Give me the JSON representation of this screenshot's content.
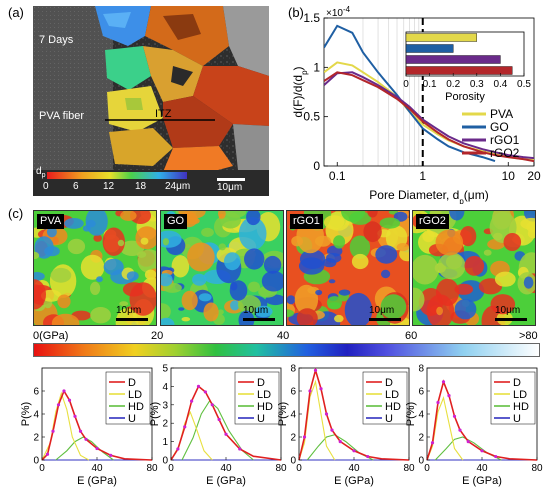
{
  "labels": {
    "a": "(a)",
    "b": "(b)",
    "c": "(c)"
  },
  "panel_a": {
    "days": "7 Days",
    "fiber": "PVA fiber",
    "itz": "ITZ",
    "cbar_symbol": "d",
    "cbar_sub": "p",
    "cbar_ticks": [
      "0",
      "6",
      "12",
      "18",
      "24μm"
    ],
    "scale": "10μm"
  },
  "panel_c": {
    "maps": [
      {
        "tag": "PVA",
        "scale": "10μm"
      },
      {
        "tag": "GO",
        "scale": "10μm"
      },
      {
        "tag": "rGO1",
        "scale": "10μm"
      },
      {
        "tag": "rGO2",
        "scale": "10μm"
      }
    ],
    "colorbar_ticks": [
      "0(GPa)",
      "20",
      "40",
      "60",
      ">80"
    ]
  },
  "colors": {
    "PVA": "#e3d84a",
    "GO": "#1f5fa3",
    "rGO1": "#6a2a8a",
    "rGO2": "#b3262a",
    "D": "#e02020",
    "LD": "#e8e040",
    "HD": "#60c040",
    "U": "#3030c0",
    "fit": "#d020d0"
  },
  "chart_data": [
    {
      "type": "line",
      "panel": "b",
      "ylabel": "d(F)/d(d_p)",
      "xlabel": "Pore Diameter, d_p(μm)",
      "exponent": "10",
      "exponent_power": "-4",
      "xscale": "log",
      "xlim": [
        0.07,
        20
      ],
      "ylim": [
        0,
        1.5
      ],
      "xticks": [
        "0.1",
        "1",
        "10",
        "20"
      ],
      "xtick_values": [
        0.1,
        1,
        10,
        20
      ],
      "yticks": [
        "0",
        "0.5",
        "1",
        "1.5"
      ],
      "ytick_values": [
        0,
        0.5,
        1.0,
        1.5
      ],
      "marker_line_x": 1,
      "series": [
        {
          "name": "PVA",
          "x": [
            0.07,
            0.1,
            0.15,
            0.2,
            0.3,
            0.5,
            0.7,
            1,
            1.5,
            2,
            3,
            5,
            7,
            10,
            15,
            20
          ],
          "y": [
            0.95,
            1.05,
            1.02,
            0.95,
            0.85,
            0.7,
            0.55,
            0.42,
            0.32,
            0.26,
            0.2,
            0.15,
            0.12,
            0.09,
            0.07,
            0.06
          ]
        },
        {
          "name": "GO",
          "x": [
            0.07,
            0.1,
            0.15,
            0.2,
            0.3,
            0.5,
            0.7,
            1,
            1.5,
            2,
            3,
            5,
            7
          ],
          "y": [
            1.2,
            1.42,
            1.35,
            1.15,
            0.95,
            0.72,
            0.55,
            0.38,
            0.27,
            0.2,
            0.14,
            0.09,
            0.05
          ]
        },
        {
          "name": "rGO1",
          "x": [
            0.07,
            0.1,
            0.15,
            0.2,
            0.3,
            0.5,
            0.7,
            1,
            1.5,
            2,
            3,
            5,
            7,
            10,
            15,
            20
          ],
          "y": [
            0.82,
            0.94,
            0.95,
            0.9,
            0.82,
            0.7,
            0.6,
            0.47,
            0.37,
            0.3,
            0.23,
            0.17,
            0.14,
            0.11,
            0.09,
            0.08
          ]
        },
        {
          "name": "rGO2",
          "x": [
            0.07,
            0.1,
            0.15,
            0.2,
            0.3,
            0.5,
            0.7,
            1,
            1.5,
            2,
            3,
            5,
            7,
            10,
            15,
            20
          ],
          "y": [
            0.86,
            0.95,
            0.92,
            0.87,
            0.8,
            0.68,
            0.58,
            0.45,
            0.34,
            0.27,
            0.2,
            0.14,
            0.11,
            0.09,
            0.07,
            0.05
          ]
        }
      ],
      "legend": [
        "PVA",
        "GO",
        "rGO1",
        "rGO2"
      ],
      "inset": {
        "type": "bar",
        "orientation": "horizontal",
        "xlabel": "Porosity",
        "xticks": [
          "0",
          "0.1",
          "0.2",
          "0.3",
          "0.4",
          "0.5"
        ],
        "xtick_values": [
          0,
          0.1,
          0.2,
          0.3,
          0.4,
          0.5
        ],
        "xlim": [
          0,
          0.5
        ],
        "categories": [
          "PVA",
          "GO",
          "rGO1",
          "rGO2"
        ],
        "values": [
          0.3,
          0.2,
          0.4,
          0.45
        ]
      }
    },
    {
      "type": "line",
      "panel": "c",
      "title": "PVA",
      "xlabel": "E (GPa)",
      "ylabel": "P(%)",
      "xlim": [
        0,
        80
      ],
      "ylim": [
        0,
        8
      ],
      "xticks": [
        "0",
        "40",
        "80"
      ],
      "yticks": [
        "0",
        "2",
        "4",
        "6"
      ],
      "series": [
        {
          "name": "D",
          "x": [
            0,
            4,
            8,
            12,
            16,
            20,
            24,
            28,
            32,
            40,
            50,
            60,
            80
          ],
          "y": [
            0,
            0.5,
            2.5,
            4.8,
            6.0,
            5.2,
            3.8,
            2.5,
            1.8,
            1.0,
            0.4,
            0.1,
            0
          ]
        },
        {
          "name": "LD",
          "x": [
            0,
            6,
            10,
            14,
            18,
            22,
            28,
            34
          ],
          "y": [
            0,
            1.5,
            4.2,
            5.8,
            4.4,
            2.0,
            0.4,
            0
          ]
        },
        {
          "name": "HD",
          "x": [
            10,
            18,
            24,
            30,
            36,
            44,
            52
          ],
          "y": [
            0,
            0.8,
            1.6,
            2.0,
            1.6,
            0.7,
            0
          ]
        },
        {
          "name": "U",
          "x": [
            0,
            80
          ],
          "y": [
            0,
            0
          ]
        }
      ],
      "legend": [
        "D",
        "LD",
        "HD",
        "U"
      ]
    },
    {
      "type": "line",
      "panel": "c",
      "title": "GO",
      "xlabel": "E (GPa)",
      "ylabel": "P(%)",
      "xlim": [
        0,
        80
      ],
      "ylim": [
        0,
        5
      ],
      "xticks": [
        "0",
        "40",
        "80"
      ],
      "yticks": [
        "0",
        "1",
        "2",
        "3",
        "4",
        "5"
      ],
      "series": [
        {
          "name": "D",
          "x": [
            0,
            5,
            10,
            15,
            20,
            25,
            30,
            35,
            40,
            50,
            60,
            80
          ],
          "y": [
            0,
            0.6,
            1.8,
            3.2,
            4.0,
            3.7,
            3.0,
            2.2,
            1.4,
            0.6,
            0.2,
            0
          ]
        },
        {
          "name": "LD",
          "x": [
            0,
            6,
            10,
            14,
            18,
            24,
            30
          ],
          "y": [
            0,
            0.8,
            2.0,
            2.6,
            1.8,
            0.5,
            0
          ]
        },
        {
          "name": "HD",
          "x": [
            8,
            16,
            22,
            28,
            34,
            42,
            52,
            60
          ],
          "y": [
            0,
            1.2,
            2.5,
            3.2,
            2.8,
            1.6,
            0.5,
            0
          ]
        },
        {
          "name": "U",
          "x": [
            0,
            80
          ],
          "y": [
            0,
            0
          ]
        }
      ],
      "legend": [
        "D",
        "LD",
        "HD",
        "U"
      ]
    },
    {
      "type": "line",
      "panel": "c",
      "title": "rGO1",
      "xlabel": "E (GPa)",
      "ylabel": "P(%)",
      "xlim": [
        0,
        80
      ],
      "ylim": [
        0,
        8
      ],
      "xticks": [
        "0",
        "40",
        "80"
      ],
      "yticks": [
        "0",
        "2",
        "4",
        "6",
        "8"
      ],
      "series": [
        {
          "name": "D",
          "x": [
            0,
            4,
            8,
            12,
            16,
            20,
            24,
            30,
            40,
            50,
            60,
            80
          ],
          "y": [
            0,
            2.0,
            6.0,
            7.8,
            6.2,
            4.0,
            2.6,
            1.6,
            0.8,
            0.3,
            0.1,
            0
          ]
        },
        {
          "name": "LD",
          "x": [
            0,
            4,
            8,
            12,
            16,
            20,
            26
          ],
          "y": [
            0,
            1.5,
            5.5,
            6.8,
            4.0,
            1.2,
            0
          ]
        },
        {
          "name": "HD",
          "x": [
            6,
            14,
            20,
            26,
            34,
            44,
            54
          ],
          "y": [
            0,
            1.2,
            2.0,
            2.2,
            1.6,
            0.6,
            0
          ]
        },
        {
          "name": "U",
          "x": [
            0,
            80
          ],
          "y": [
            0,
            0
          ]
        }
      ],
      "legend": [
        "D",
        "LD",
        "HD",
        "U"
      ]
    },
    {
      "type": "line",
      "panel": "c",
      "title": "rGO2",
      "xlabel": "E (GPa)",
      "ylabel": "P(%)",
      "xlim": [
        0,
        80
      ],
      "ylim": [
        0,
        8
      ],
      "xticks": [
        "0",
        "40",
        "80"
      ],
      "yticks": [
        "0",
        "2",
        "4",
        "6",
        "8"
      ],
      "series": [
        {
          "name": "D",
          "x": [
            0,
            4,
            8,
            12,
            16,
            20,
            24,
            30,
            40,
            50,
            60,
            80
          ],
          "y": [
            0,
            1.5,
            5.0,
            6.8,
            5.6,
            3.8,
            2.6,
            1.6,
            0.8,
            0.3,
            0.1,
            0
          ]
        },
        {
          "name": "LD",
          "x": [
            0,
            4,
            8,
            12,
            16,
            20,
            26
          ],
          "y": [
            0,
            1.2,
            4.2,
            5.4,
            3.2,
            1.0,
            0
          ]
        },
        {
          "name": "HD",
          "x": [
            6,
            14,
            20,
            26,
            34,
            44,
            54
          ],
          "y": [
            0,
            1.0,
            1.8,
            2.0,
            1.5,
            0.6,
            0
          ]
        },
        {
          "name": "U",
          "x": [
            0,
            80
          ],
          "y": [
            0,
            0
          ]
        }
      ],
      "legend": [
        "D",
        "LD",
        "HD",
        "U"
      ]
    }
  ]
}
